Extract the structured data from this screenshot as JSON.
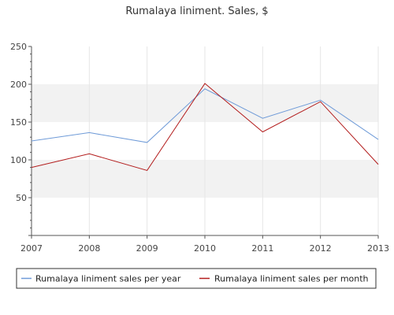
{
  "chart_data": {
    "type": "line",
    "title": "Rumalaya liniment. Sales, $",
    "xlabel": "",
    "ylabel": "",
    "categories": [
      "2007",
      "2008",
      "2009",
      "2010",
      "2011",
      "2012",
      "2013"
    ],
    "ylim": [
      0,
      250
    ],
    "yticks": [
      "50",
      "100",
      "150",
      "200",
      "250"
    ],
    "grid": true,
    "legend_position": "bottom",
    "series": [
      {
        "name": "Rumalaya liniment sales per year",
        "color": "#6f9bd8",
        "values": [
          125,
          136,
          123,
          194,
          155,
          179,
          127
        ]
      },
      {
        "name": "Rumalaya liniment sales per month",
        "color": "#b31d1d",
        "values": [
          90,
          108,
          86,
          201,
          137,
          177,
          94
        ]
      }
    ]
  }
}
